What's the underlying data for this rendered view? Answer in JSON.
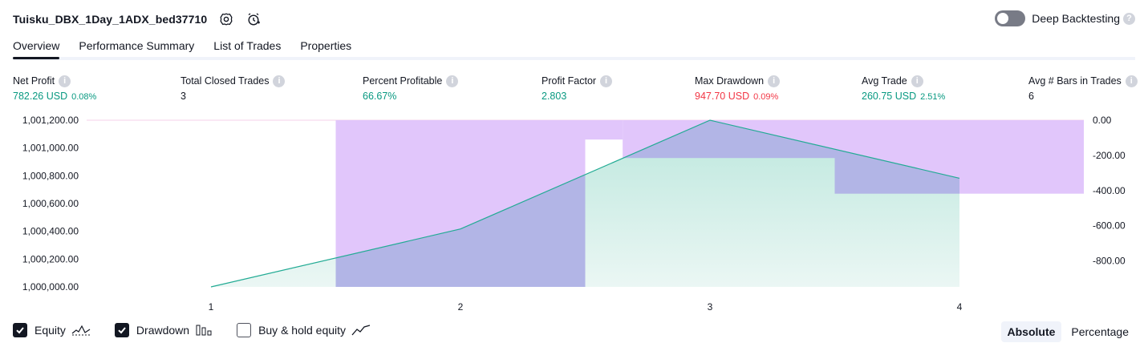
{
  "header": {
    "title": "Tuisku_DBX_1Day_1ADX_bed37710",
    "deep_backtesting_label": "Deep Backtesting",
    "deep_backtesting_enabled": false
  },
  "tabs": [
    {
      "label": "Overview",
      "active": true
    },
    {
      "label": "Performance Summary",
      "active": false
    },
    {
      "label": "List of Trades",
      "active": false
    },
    {
      "label": "Properties",
      "active": false
    }
  ],
  "stats": [
    {
      "label": "Net Profit",
      "value": "782.26 USD",
      "pct": "0.08%",
      "tone": "pos"
    },
    {
      "label": "Total Closed Trades",
      "value": "3",
      "pct": "",
      "tone": "neu"
    },
    {
      "label": "Percent Profitable",
      "value": "66.67%",
      "pct": "",
      "tone": "pos"
    },
    {
      "label": "Profit Factor",
      "value": "2.803",
      "pct": "",
      "tone": "pos"
    },
    {
      "label": "Max Drawdown",
      "value": "947.70 USD",
      "pct": "0.09%",
      "tone": "neg"
    },
    {
      "label": "Avg Trade",
      "value": "260.75 USD",
      "pct": "2.51%",
      "tone": "pos"
    },
    {
      "label": "Avg # Bars in Trades",
      "value": "6",
      "pct": "",
      "tone": "neu"
    }
  ],
  "chart_data": {
    "type": "area",
    "x": [
      1,
      2,
      3,
      4
    ],
    "equity": [
      1000000.0,
      1000417.0,
      1001200.0,
      1000782.26
    ],
    "drawdown_bars": [
      {
        "from": 1.5,
        "to": 2.5,
        "value": -947.7
      },
      {
        "from": 2.5,
        "to": 2.65,
        "value": -110.0
      },
      {
        "from": 2.65,
        "to": 3.5,
        "value": -215.0
      },
      {
        "from": 3.5,
        "to": 4.5,
        "value": -417.74
      }
    ],
    "left_axis": {
      "ticks": [
        "1,001,200.00",
        "1,001,000.00",
        "1,000,800.00",
        "1,000,600.00",
        "1,000,400.00",
        "1,000,200.00",
        "1,000,000.00"
      ],
      "range": [
        1000000.0,
        1001200.0
      ]
    },
    "right_axis": {
      "ticks": [
        "0.00",
        "-200.00",
        "-400.00",
        "-600.00",
        "-800.00"
      ],
      "range": [
        -947.7,
        0
      ]
    },
    "x_ticks": [
      "1",
      "2",
      "3",
      "4"
    ],
    "colors": {
      "equity_line": "#22ab94",
      "equity_fill": "#c8ebe3",
      "drawdown_fill": "#e1c6fb",
      "overlap_fill": "#b2b5e6"
    }
  },
  "legend": {
    "items": [
      {
        "label": "Equity",
        "checked": true,
        "icon": "equity-line-icon"
      },
      {
        "label": "Drawdown",
        "checked": true,
        "icon": "drawdown-bars-icon"
      },
      {
        "label": "Buy & hold equity",
        "checked": false,
        "icon": "buy-hold-line-icon"
      }
    ],
    "modes": [
      {
        "label": "Absolute",
        "active": true
      },
      {
        "label": "Percentage",
        "active": false
      }
    ]
  }
}
